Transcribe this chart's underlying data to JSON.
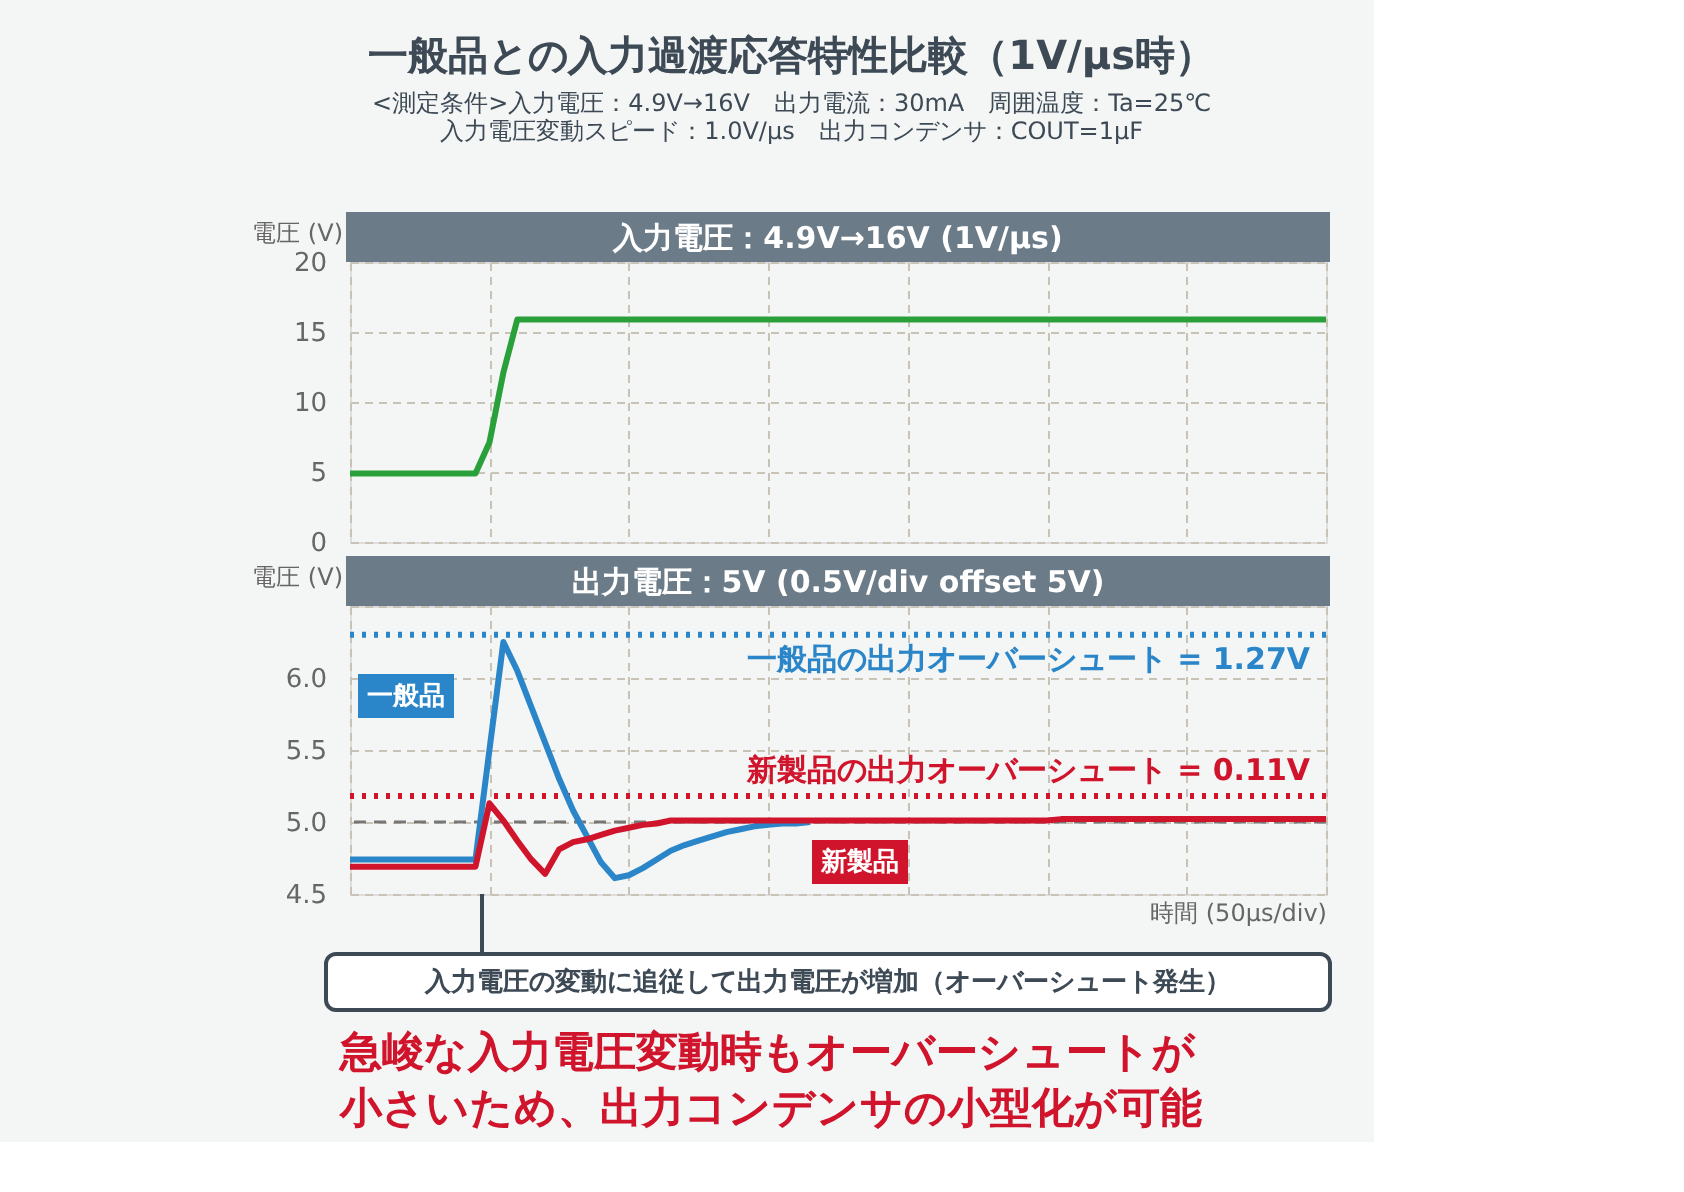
{
  "chart_data": [
    {
      "type": "line",
      "title": "入力電圧：4.9V→16V (1V/µs)",
      "ylabel": "電圧 (V)",
      "annotations": [
        "一般品との入力過渡応答特性比較（1V/µs時）",
        "<測定条件>入力電圧：4.9V→16V　出力電流：30mA　周囲温度：Ta=25℃",
        "入力電圧変動スピード：1.0V/µs　出力コンデンサ：COUT=1µF"
      ],
      "categories": [
        null,
        null,
        null,
        null,
        null,
        null,
        null,
        null,
        null,
        null,
        null,
        null,
        null,
        null,
        null,
        null,
        null,
        null,
        null,
        null,
        null,
        null,
        null,
        null,
        null,
        null,
        null,
        null,
        null,
        null,
        null,
        null,
        null,
        null,
        null,
        null,
        null,
        null,
        null,
        null,
        null,
        null,
        null,
        null,
        null,
        null,
        null,
        null,
        null,
        null,
        null,
        null,
        null,
        null,
        null,
        null,
        null,
        null,
        null,
        null,
        null,
        null,
        null,
        null,
        null,
        null,
        null,
        null,
        null,
        null,
        null
      ],
      "series": [
        {
          "color": "#2aa03a",
          "values": [
            4.9,
            4.9,
            4.9,
            4.9,
            4.9,
            4.9,
            4.9,
            4.9,
            4.9,
            4.9,
            7.1,
            12.1,
            15.9,
            15.9,
            15.9,
            15.9,
            15.9,
            15.9,
            15.9,
            15.9,
            15.9,
            15.9,
            15.9,
            15.9,
            15.9,
            15.9,
            15.9,
            15.9,
            15.9,
            15.9,
            15.9,
            15.9,
            15.9,
            15.9,
            15.9,
            15.9,
            15.9,
            15.9,
            15.9,
            15.9,
            15.9,
            15.9,
            15.9,
            15.9,
            15.9,
            15.9,
            15.9,
            15.9,
            15.9,
            15.9,
            15.9,
            15.9,
            15.9,
            15.9,
            15.9,
            15.9,
            15.9,
            15.9,
            15.9,
            15.9,
            15.9,
            15.9,
            15.9,
            15.9,
            15.9,
            15.9,
            15.9,
            15.9,
            15.9,
            15.9,
            15.9
          ]
        }
      ],
      "ylim": [
        0,
        20
      ],
      "yticks": [
        0,
        5,
        10,
        15,
        20
      ],
      "tick_labels": "y",
      "grid": true,
      "marker": "none",
      "line_style": "solid"
    },
    {
      "type": "line",
      "title": "出力電圧：5V (0.5V/div offset 5V)",
      "ylabel": "電圧 (V)",
      "xlabel": "時間 (50µs/div)",
      "annotations": [
        "入力電圧の変動に追従して出力電圧が増加（オーバーシュート発生）",
        "急峻な入力電圧変動時もオーバーシュートが",
        "小さいため、出力コンデンサの小型化が可能",
        {
          "text": "一般品の出力オーバーシュート = 1.27V",
          "y": 6.3
        },
        {
          "text": "新製品の出力オーバーシュート = 0.11V",
          "y": 5.18
        }
      ],
      "categories": [
        null,
        null,
        null,
        null,
        null,
        null,
        null,
        null,
        null,
        null,
        null,
        null,
        null,
        null,
        null,
        null,
        null,
        null,
        null,
        null,
        null,
        null,
        null,
        null,
        null,
        null,
        null,
        null,
        null,
        null,
        null,
        null,
        null,
        null,
        null,
        null,
        null,
        null,
        null,
        null,
        null,
        null,
        null,
        null,
        null,
        null,
        null,
        null,
        null,
        null,
        null,
        null,
        null,
        null,
        null,
        null,
        null,
        null,
        null,
        null,
        null,
        null,
        null,
        null,
        null,
        null,
        null,
        null,
        null,
        null,
        null
      ],
      "series": [
        {
          "name": "一般品",
          "color": "#2a86c8",
          "values": [
            4.74,
            4.74,
            4.74,
            4.74,
            4.74,
            4.74,
            4.74,
            4.74,
            4.74,
            4.74,
            5.5,
            6.25,
            6.05,
            5.8,
            5.55,
            5.3,
            5.08,
            4.9,
            4.72,
            4.61,
            4.63,
            4.68,
            4.74,
            4.8,
            4.84,
            4.87,
            4.9,
            4.93,
            4.95,
            4.97,
            4.98,
            4.99,
            4.99,
            5.0,
            null,
            null,
            null,
            null,
            null,
            null,
            null,
            null,
            null,
            null,
            null,
            null,
            null,
            null,
            null,
            null,
            null,
            null,
            null,
            null,
            null,
            null,
            null,
            null,
            null,
            null,
            null,
            null,
            null,
            null,
            null,
            null,
            null,
            null,
            null,
            null,
            null
          ]
        },
        {
          "name": "新製品",
          "color": "#d0142c",
          "values": [
            4.69,
            4.69,
            4.69,
            4.69,
            4.69,
            4.69,
            4.69,
            4.69,
            4.69,
            4.69,
            5.13,
            5.01,
            4.87,
            4.74,
            4.64,
            4.81,
            4.86,
            4.88,
            4.91,
            4.94,
            4.96,
            4.98,
            4.99,
            5.01,
            5.01,
            5.01,
            5.01,
            5.01,
            5.01,
            5.01,
            5.01,
            5.01,
            5.01,
            5.01,
            5.01,
            5.01,
            5.01,
            5.01,
            5.01,
            5.01,
            5.01,
            5.01,
            5.01,
            5.01,
            5.01,
            5.01,
            5.01,
            5.01,
            5.01,
            5.01,
            5.01,
            5.02,
            5.02,
            5.02,
            5.02,
            5.02,
            5.02,
            5.02,
            5.02,
            5.02,
            5.02,
            5.02,
            5.02,
            5.02,
            5.02,
            5.02,
            5.02,
            5.02,
            5.02,
            5.02,
            5.02
          ]
        }
      ],
      "ylim": [
        4.5,
        6.5
      ],
      "yticks": [
        {
          "value": 4.5,
          "label": "4.5"
        },
        {
          "value": 5,
          "label": "5.0"
        },
        {
          "value": 5.5,
          "label": "5.5"
        },
        {
          "value": 6,
          "label": "6.0"
        },
        {
          "value": 6.5,
          "label": null
        }
      ],
      "tick_labels": "y",
      "grid": true,
      "marker": "none",
      "line_style": "solid",
      "ref_lines": [
        {
          "axis": "y",
          "value": 5,
          "color": "#777777",
          "line_style": "dashed"
        },
        {
          "axis": "y",
          "value": 6.3,
          "color": "#2a86c8",
          "line_style": "dotted"
        },
        {
          "axis": "y",
          "value": 5.18,
          "color": "#d0142c",
          "line_style": "dotted"
        }
      ]
    }
  ]
}
